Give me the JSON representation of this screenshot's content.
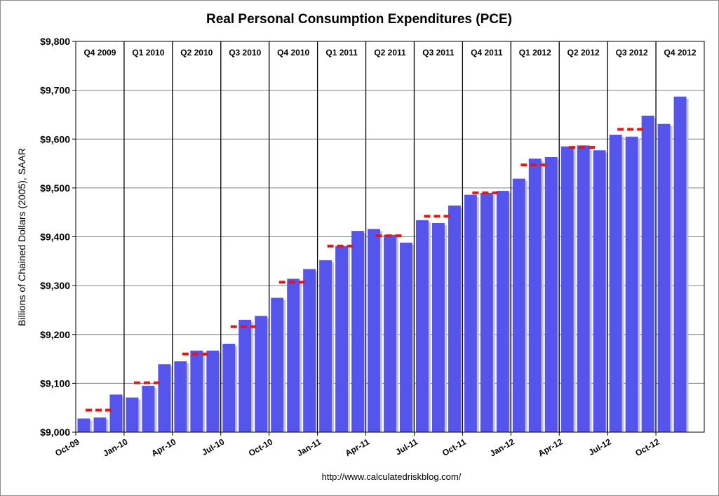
{
  "chart_data": {
    "type": "bar",
    "title": "Real Personal Consumption Expenditures (PCE)",
    "ylabel": "Billions of Chained Dollars (2005), SAAR",
    "xlabel": "",
    "source": "http://www.calculatedriskblog.com/",
    "ylim": [
      9000,
      9800
    ],
    "ytick_values": [
      9000,
      9100,
      9200,
      9300,
      9400,
      9500,
      9600,
      9700,
      9800
    ],
    "ytick_labels": [
      "$9,000",
      "$9,100",
      "$9,200",
      "$9,300",
      "$9,400",
      "$9,500",
      "$9,600",
      "$9,700",
      "$9,800"
    ],
    "grid": true,
    "legend": "none",
    "categories": [
      "Oct-09",
      "Nov-09",
      "Dec-09",
      "Jan-10",
      "Feb-10",
      "Mar-10",
      "Apr-10",
      "May-10",
      "Jun-10",
      "Jul-10",
      "Aug-10",
      "Sep-10",
      "Oct-10",
      "Nov-10",
      "Dec-10",
      "Jan-11",
      "Feb-11",
      "Mar-11",
      "Apr-11",
      "May-11",
      "Jun-11",
      "Jul-11",
      "Aug-11",
      "Sep-11",
      "Oct-11",
      "Nov-11",
      "Dec-11",
      "Jan-12",
      "Feb-12",
      "Mar-12",
      "Apr-12",
      "May-12",
      "Jun-12",
      "Jul-12",
      "Aug-12",
      "Sep-12",
      "Oct-12",
      "Nov-12"
    ],
    "x_tick_labels": [
      "Oct-09",
      "Jan-10",
      "Apr-10",
      "Jul-10",
      "Oct-10",
      "Jan-11",
      "Apr-11",
      "Jul-11",
      "Oct-11",
      "Jan-12",
      "Apr-12",
      "Jul-12",
      "Oct-12"
    ],
    "series": [
      {
        "type": "bar",
        "values": [
          9028,
          9030,
          9077,
          9071,
          9095,
          9139,
          9145,
          9167,
          9167,
          9181,
          9230,
          9238,
          9275,
          9314,
          9334,
          9352,
          9381,
          9412,
          9416,
          9404,
          9388,
          9434,
          9428,
          9464,
          9486,
          9490,
          9494,
          9519,
          9560,
          9563,
          9585,
          9587,
          9577,
          9609,
          9605,
          9648,
          9631,
          9687
        ]
      }
    ],
    "quarters": [
      {
        "label": "Q4 2009",
        "average": 9045
      },
      {
        "label": "Q1 2010",
        "average": 9101
      },
      {
        "label": "Q2 2010",
        "average": 9160
      },
      {
        "label": "Q3 2010",
        "average": 9216
      },
      {
        "label": "Q4 2010",
        "average": 9307
      },
      {
        "label": "Q1 2011",
        "average": 9381
      },
      {
        "label": "Q2 2011",
        "average": 9402
      },
      {
        "label": "Q3 2011",
        "average": 9442
      },
      {
        "label": "Q4 2011",
        "average": 9490
      },
      {
        "label": "Q1 2012",
        "average": 9547
      },
      {
        "label": "Q2 2012",
        "average": 9583
      },
      {
        "label": "Q3 2012",
        "average": 9620
      },
      {
        "label": "Q4 2012",
        "average": null
      }
    ],
    "colors": {
      "bar": "#5555ee",
      "bar_shadow": "#c4c4cc",
      "quarter_average": "#e01818",
      "gridline": "#808080",
      "quarter_divider": "#000000"
    }
  }
}
